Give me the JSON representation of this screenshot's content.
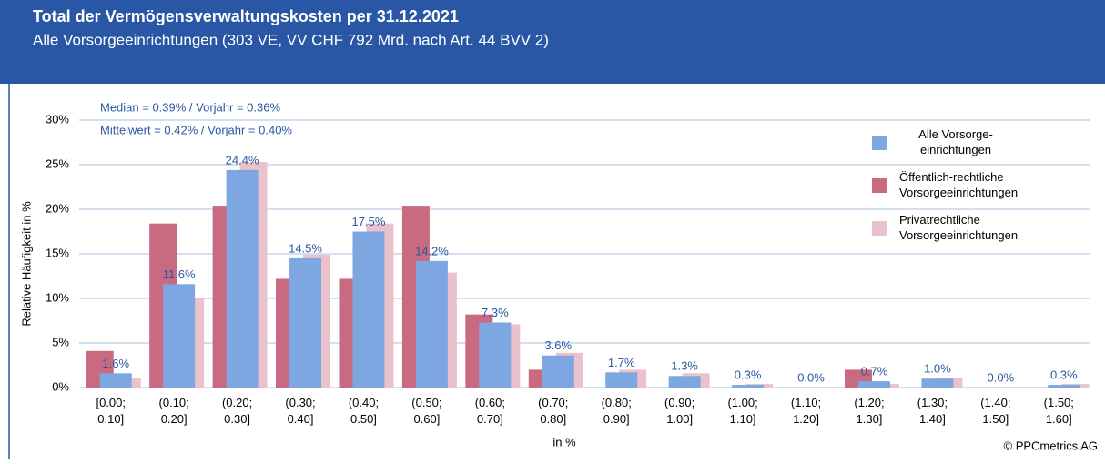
{
  "chart_data": {
    "type": "bar",
    "title": "Total der Vermögensverwaltungskosten per 31.12.2021",
    "subtitle": "Alle Vorsorgeeinrichtungen (303 VE, VV CHF 792 Mrd. nach Art. 44 BVV 2)",
    "annotations": [
      "Median = 0.39% / Vorjahr = 0.36%",
      "Mittelwert = 0.42% / Vorjahr = 0.40%"
    ],
    "y_label": "Relative Häufigkeit in %",
    "x_label": "in %",
    "source": "© PPCmetrics AG",
    "categories": [
      "[0.00; 0.10]",
      "(0.10; 0.20]",
      "(0.20; 0.30]",
      "(0.30; 0.40]",
      "(0.40; 0.50]",
      "(0.50; 0.60]",
      "(0.60; 0.70]",
      "(0.70; 0.80]",
      "(0.80; 0.90]",
      "(0.90; 1.00]",
      "(1.00; 1.10]",
      "(1.10; 1.20]",
      "(1.20; 1.30]",
      "(1.30; 1.40]",
      "(1.40; 1.50]",
      "(1.50; 1.60]"
    ],
    "series": [
      {
        "name": "Alle Vorsorge-\neinrichtungen",
        "color": "#7ea7e2",
        "values": [
          1.6,
          11.6,
          24.4,
          14.5,
          17.5,
          14.2,
          7.3,
          3.6,
          1.7,
          1.3,
          0.3,
          0.0,
          0.7,
          1.0,
          0.0,
          0.3
        ],
        "value_labels": [
          "1.6%",
          "11.6%",
          "24.4%",
          "14.5%",
          "17.5%",
          "14.2%",
          "7.3%",
          "3.6%",
          "1.7%",
          "1.3%",
          "0.3%",
          "0.0%",
          "0.7%",
          "1.0%",
          "0.0%",
          "0.3%"
        ]
      },
      {
        "name": "Öffentlich-rechtliche\nVorsorgeeinrichtungen",
        "color": "#c86a80",
        "values": [
          4.1,
          18.4,
          20.4,
          12.2,
          12.2,
          20.4,
          8.2,
          2.0,
          0,
          0,
          0,
          0,
          2.0,
          0,
          0,
          0
        ]
      },
      {
        "name": "Privatrechtliche\nVorsorgeeinrichtungen",
        "color": "#e9c2cc",
        "values": [
          1.1,
          10.1,
          25.3,
          14.9,
          18.4,
          12.9,
          7.1,
          3.9,
          2.0,
          1.6,
          0.4,
          0,
          0.4,
          1.1,
          0,
          0.4
        ]
      }
    ],
    "ylim": [
      0,
      30
    ],
    "yticks": [
      {
        "value": 0,
        "label": "0%"
      },
      {
        "value": 5,
        "label": "5%"
      },
      {
        "value": 10,
        "label": "10%"
      },
      {
        "value": 15,
        "label": "15%"
      },
      {
        "value": 20,
        "label": "20%"
      },
      {
        "value": 25,
        "label": "25%"
      },
      {
        "value": 30,
        "label": "30%"
      }
    ],
    "grid": true
  }
}
